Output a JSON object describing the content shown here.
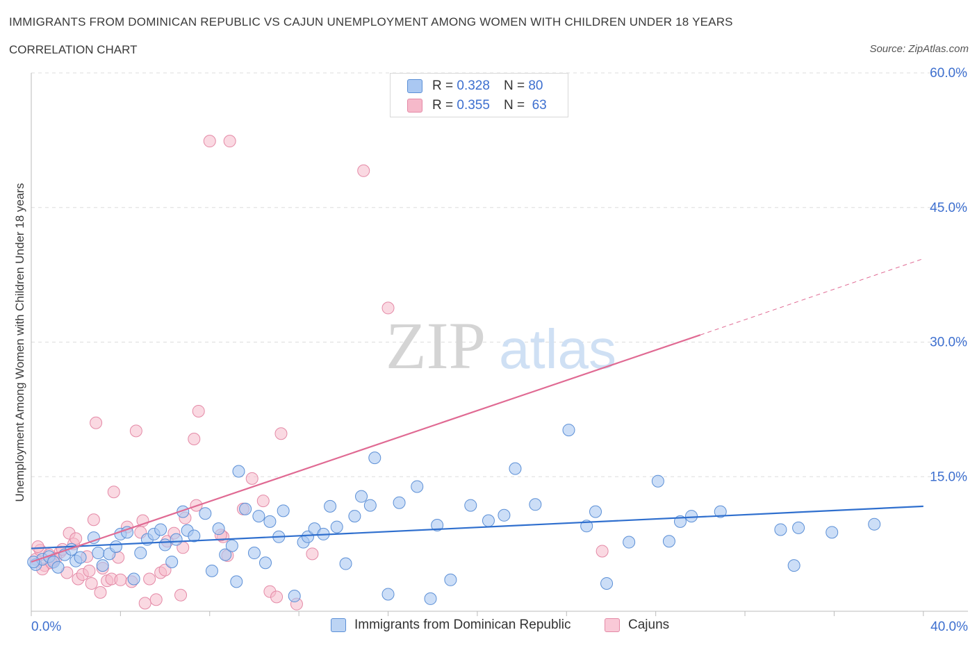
{
  "header": {
    "title": "IMMIGRANTS FROM DOMINICAN REPUBLIC VS CAJUN UNEMPLOYMENT AMONG WOMEN WITH CHILDREN UNDER 18 YEARS",
    "subtitle": "CORRELATION CHART",
    "source": "Source: ZipAtlas.com"
  },
  "legend_top": {
    "rows": [
      {
        "r_label": "R =",
        "r_value": "0.328",
        "n_label": "N =",
        "n_value": "80"
      },
      {
        "r_label": "R =",
        "r_value": "0.355",
        "n_label": "N =",
        "n_value": "63"
      }
    ]
  },
  "watermark": {
    "zip": "ZIP",
    "atlas": "atlas"
  },
  "colors": {
    "blue_fill": "#aac8f2",
    "blue_stroke": "#5b8fd6",
    "blue_line": "#2f6fce",
    "pink_fill": "#f6b9ca",
    "pink_stroke": "#e489a6",
    "pink_line": "#e06a93",
    "tick_label": "#3d6fcf",
    "grid": "#dddddd"
  },
  "chart_data": {
    "type": "scatter",
    "title": "IMMIGRANTS FROM DOMINICAN REPUBLIC VS CAJUN UNEMPLOYMENT AMONG WOMEN WITH CHILDREN UNDER 18 YEARS",
    "subtitle": "CORRELATION CHART",
    "xlabel": "",
    "ylabel": "Unemployment Among Women with Children Under 18 years",
    "xlim": [
      0,
      42
    ],
    "ylim": [
      0,
      60
    ],
    "x_tick_labels": [
      "0.0%",
      "40.0%"
    ],
    "y_tick_labels": [
      "15.0%",
      "30.0%",
      "45.0%",
      "60.0%"
    ],
    "y_ticks": [
      15,
      30,
      45,
      60
    ],
    "grid": true,
    "legend_position": "bottom",
    "series": [
      {
        "name": "Immigrants from Dominican Republic",
        "color": "#aac8f2",
        "points": [
          [
            0.2,
            5.2
          ],
          [
            0.5,
            5.8
          ],
          [
            0.8,
            6.1
          ],
          [
            1.0,
            5.5
          ],
          [
            1.2,
            4.9
          ],
          [
            1.5,
            6.3
          ],
          [
            1.8,
            6.9
          ],
          [
            2.0,
            5.6
          ],
          [
            2.2,
            6.0
          ],
          [
            2.8,
            8.2
          ],
          [
            3.0,
            6.5
          ],
          [
            3.2,
            5.1
          ],
          [
            3.5,
            6.4
          ],
          [
            3.8,
            7.2
          ],
          [
            4.0,
            8.6
          ],
          [
            4.3,
            8.8
          ],
          [
            4.6,
            3.6
          ],
          [
            4.9,
            6.5
          ],
          [
            5.2,
            8.0
          ],
          [
            5.5,
            8.6
          ],
          [
            5.8,
            9.1
          ],
          [
            6.0,
            7.4
          ],
          [
            6.3,
            5.5
          ],
          [
            6.5,
            8.0
          ],
          [
            6.8,
            11.1
          ],
          [
            7.0,
            9.0
          ],
          [
            7.3,
            8.4
          ],
          [
            7.8,
            10.9
          ],
          [
            8.1,
            4.5
          ],
          [
            8.4,
            9.2
          ],
          [
            8.7,
            6.3
          ],
          [
            9.0,
            7.3
          ],
          [
            9.2,
            3.3
          ],
          [
            9.3,
            15.6
          ],
          [
            9.6,
            11.4
          ],
          [
            10.0,
            6.5
          ],
          [
            10.2,
            10.6
          ],
          [
            10.5,
            5.4
          ],
          [
            10.7,
            10.0
          ],
          [
            11.1,
            8.3
          ],
          [
            11.3,
            11.2
          ],
          [
            11.8,
            1.7
          ],
          [
            12.2,
            7.7
          ],
          [
            12.4,
            8.3
          ],
          [
            12.7,
            9.2
          ],
          [
            13.1,
            8.6
          ],
          [
            13.4,
            11.7
          ],
          [
            13.7,
            9.4
          ],
          [
            14.1,
            5.3
          ],
          [
            14.5,
            10.6
          ],
          [
            14.8,
            12.8
          ],
          [
            15.2,
            11.8
          ],
          [
            15.4,
            17.1
          ],
          [
            16.0,
            1.9
          ],
          [
            16.5,
            12.1
          ],
          [
            17.3,
            13.9
          ],
          [
            17.9,
            1.4
          ],
          [
            18.2,
            9.6
          ],
          [
            18.8,
            3.5
          ],
          [
            19.7,
            11.8
          ],
          [
            20.5,
            10.1
          ],
          [
            21.2,
            10.7
          ],
          [
            21.7,
            15.9
          ],
          [
            22.6,
            11.9
          ],
          [
            24.1,
            20.2
          ],
          [
            24.9,
            9.5
          ],
          [
            25.3,
            11.1
          ],
          [
            25.8,
            3.1
          ],
          [
            26.8,
            7.7
          ],
          [
            28.1,
            14.5
          ],
          [
            28.6,
            7.8
          ],
          [
            29.1,
            10.0
          ],
          [
            29.6,
            10.6
          ],
          [
            30.9,
            11.1
          ],
          [
            33.6,
            9.1
          ],
          [
            34.2,
            5.1
          ],
          [
            34.4,
            9.3
          ],
          [
            35.9,
            8.8
          ],
          [
            37.8,
            9.7
          ],
          [
            0.1,
            5.5
          ]
        ]
      },
      {
        "name": "Cajuns",
        "color": "#f6b9ca",
        "points": [
          [
            0.2,
            5.8
          ],
          [
            0.4,
            6.8
          ],
          [
            0.6,
            5.1
          ],
          [
            0.8,
            6.3
          ],
          [
            1.0,
            5.7
          ],
          [
            1.3,
            6.6
          ],
          [
            1.6,
            4.3
          ],
          [
            1.7,
            8.7
          ],
          [
            1.9,
            7.5
          ],
          [
            2.1,
            3.6
          ],
          [
            2.3,
            4.1
          ],
          [
            2.5,
            6.1
          ],
          [
            2.7,
            3.1
          ],
          [
            2.8,
            10.2
          ],
          [
            2.9,
            21.0
          ],
          [
            3.1,
            2.1
          ],
          [
            3.2,
            4.8
          ],
          [
            3.4,
            3.4
          ],
          [
            3.6,
            3.6
          ],
          [
            3.7,
            13.3
          ],
          [
            4.0,
            3.5
          ],
          [
            4.3,
            9.4
          ],
          [
            4.5,
            3.3
          ],
          [
            4.7,
            20.1
          ],
          [
            4.9,
            8.8
          ],
          [
            5.0,
            10.1
          ],
          [
            5.1,
            0.9
          ],
          [
            5.3,
            3.6
          ],
          [
            5.6,
            1.3
          ],
          [
            5.8,
            4.3
          ],
          [
            6.0,
            4.6
          ],
          [
            6.1,
            7.8
          ],
          [
            6.4,
            8.7
          ],
          [
            6.7,
            1.8
          ],
          [
            6.9,
            10.4
          ],
          [
            7.3,
            19.2
          ],
          [
            7.4,
            11.8
          ],
          [
            7.5,
            22.3
          ],
          [
            8.0,
            52.4
          ],
          [
            8.6,
            8.3
          ],
          [
            8.8,
            6.2
          ],
          [
            8.9,
            52.4
          ],
          [
            9.5,
            11.4
          ],
          [
            9.9,
            14.8
          ],
          [
            10.4,
            12.3
          ],
          [
            10.7,
            2.2
          ],
          [
            11.0,
            1.6
          ],
          [
            11.2,
            19.8
          ],
          [
            11.9,
            0.8
          ],
          [
            12.6,
            6.4
          ],
          [
            14.9,
            49.1
          ],
          [
            16.0,
            33.8
          ],
          [
            25.6,
            6.7
          ],
          [
            0.3,
            7.2
          ],
          [
            1.1,
            5.9
          ],
          [
            1.4,
            6.9
          ],
          [
            2.0,
            8.1
          ],
          [
            0.5,
            4.7
          ],
          [
            0.9,
            5.4
          ],
          [
            3.9,
            6.0
          ],
          [
            6.8,
            7.1
          ],
          [
            8.5,
            8.5
          ],
          [
            2.6,
            4.5
          ]
        ]
      }
    ],
    "trendlines": [
      {
        "series": "Immigrants from Dominican Republic",
        "from": [
          0,
          7.0
        ],
        "to": [
          40,
          11.7
        ],
        "style": "solid"
      },
      {
        "series": "Cajuns",
        "from": [
          0,
          5.5
        ],
        "to": [
          30,
          30.8
        ],
        "style": "solid"
      },
      {
        "series": "Cajuns",
        "from": [
          30,
          30.8
        ],
        "to": [
          40,
          39.3
        ],
        "style": "dashed"
      }
    ]
  },
  "bottom_legend": {
    "items": [
      {
        "label": "Immigrants from Dominican Republic"
      },
      {
        "label": "Cajuns"
      }
    ]
  }
}
